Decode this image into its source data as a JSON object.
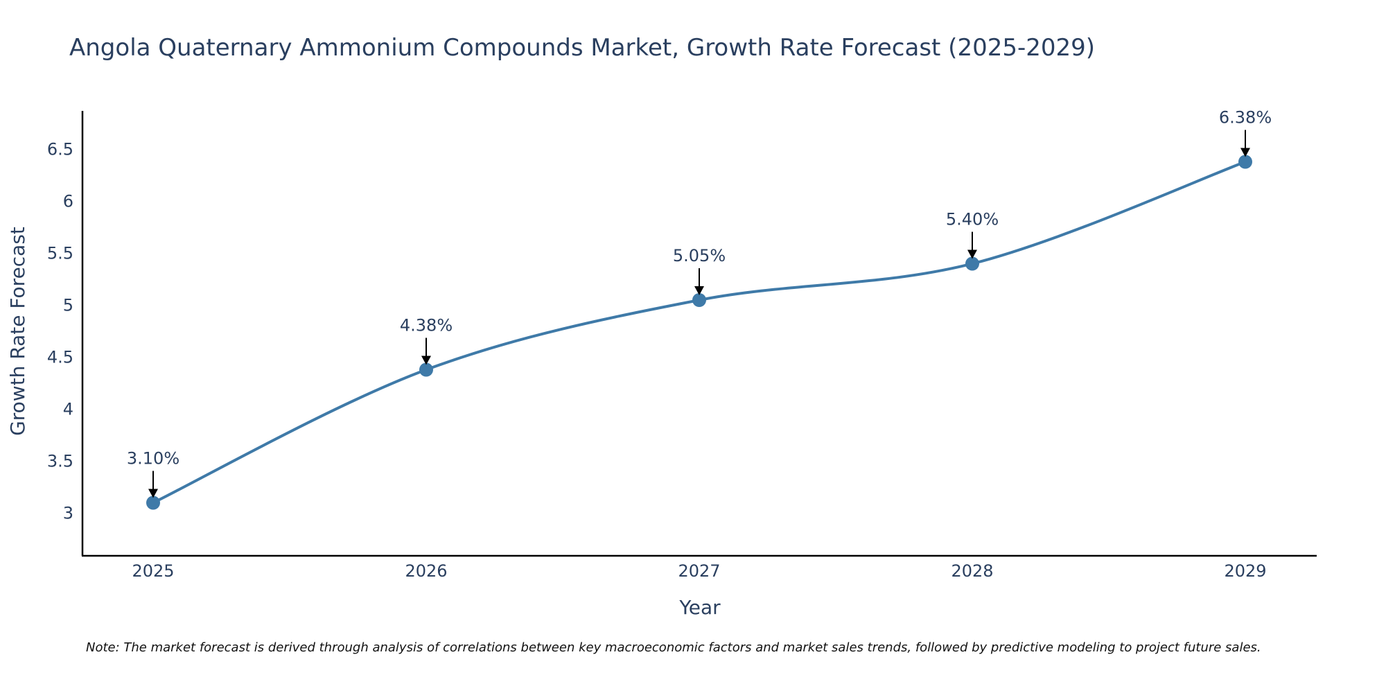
{
  "chart_data": {
    "type": "line",
    "title": "Angola Quaternary Ammonium Compounds Market, Growth Rate Forecast (2025-2029)",
    "xlabel": "Year",
    "ylabel": "Growth Rate Forecast",
    "categories": [
      "2025",
      "2026",
      "2027",
      "2028",
      "2029"
    ],
    "series": [
      {
        "name": "Growth Rate Forecast",
        "values": [
          3.1,
          4.38,
          5.05,
          5.4,
          6.38
        ],
        "color": "#3f7aa8"
      }
    ],
    "data_labels": [
      "3.10%",
      "4.38%",
      "5.05%",
      "5.40%",
      "6.38%"
    ],
    "yticks": [
      3,
      3.5,
      4,
      4.5,
      5,
      5.5,
      6,
      6.5
    ],
    "ytick_labels": [
      "3",
      "3.5",
      "4",
      "4.5",
      "5",
      "5.5",
      "6",
      "6.5"
    ],
    "ylim": [
      2.59,
      6.87
    ],
    "grid": false,
    "line_shape": "spline",
    "note": "Note: The market forecast is derived through analysis of correlations between key macroeconomic factors and market sales trends, followed by predictive modeling to project future sales."
  },
  "colors": {
    "line": "#3f7aa8",
    "text": "#2a3f5f",
    "axis": "#000000"
  }
}
